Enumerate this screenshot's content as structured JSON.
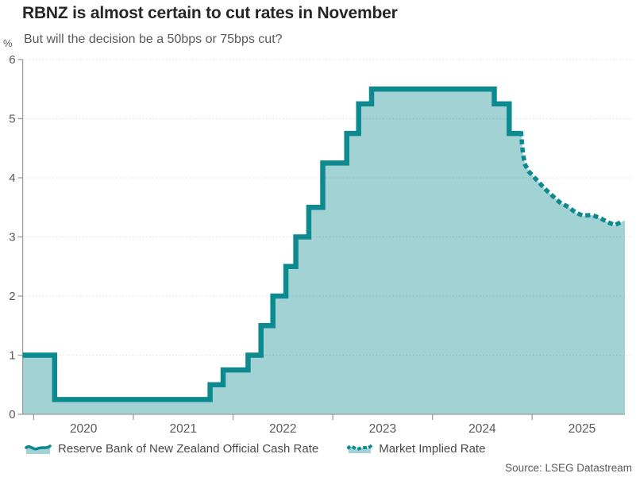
{
  "header": {
    "title": "RBNZ is almost certain to cut rates in November",
    "subtitle": "But will the decision be a 50bps or 75bps cut?"
  },
  "axes": {
    "y_unit": "%",
    "y_ticks": [
      0,
      1,
      2,
      3,
      4,
      5,
      6
    ],
    "x_ticks": [
      2020,
      2021,
      2022,
      2023,
      2024,
      2025
    ],
    "x_tick_labels": [
      "2020",
      "2021",
      "2022",
      "2023",
      "2024",
      "2025"
    ]
  },
  "legend": {
    "items": [
      {
        "label": "Reserve Bank of New Zealand Official Cash Rate",
        "icon": "area-line-icon",
        "style": "solid"
      },
      {
        "label": "Market Implied Rate",
        "icon": "dotted-line-icon",
        "style": "dotted"
      }
    ]
  },
  "footer": {
    "source": "Source: LSEG Datastream"
  },
  "colors": {
    "line": "#0d8a8f",
    "fill": "rgba(13,138,143,0.38)",
    "grid": "#d8d8d8",
    "axis": "#9c9c9c",
    "tick_text": "#595959",
    "title_text": "#262626",
    "legend_text": "#4a4a4a"
  },
  "chart_data": {
    "type": "area",
    "title": "RBNZ is almost certain to cut rates in November",
    "subtitle": "But will the decision be a 50bps or 75bps cut?",
    "ylabel": "%",
    "ylim": [
      0,
      6
    ],
    "xlim": [
      2019.89,
      2025.93
    ],
    "grid": "horizontal-dotted",
    "legend_position": "bottom",
    "series": [
      {
        "name": "Reserve Bank of New Zealand Official Cash Rate",
        "style": "step-solid",
        "end_x": 2024.89,
        "points": [
          [
            2019.89,
            1.0
          ],
          [
            2020.21,
            0.25
          ],
          [
            2021.77,
            0.5
          ],
          [
            2021.9,
            0.75
          ],
          [
            2022.15,
            1.0
          ],
          [
            2022.28,
            1.5
          ],
          [
            2022.4,
            2.0
          ],
          [
            2022.53,
            2.5
          ],
          [
            2022.63,
            3.0
          ],
          [
            2022.76,
            3.5
          ],
          [
            2022.9,
            4.25
          ],
          [
            2023.14,
            4.75
          ],
          [
            2023.26,
            5.25
          ],
          [
            2023.39,
            5.5
          ],
          [
            2024.62,
            5.25
          ],
          [
            2024.77,
            4.75
          ]
        ]
      },
      {
        "name": "Market Implied Rate",
        "style": "dotted",
        "points": [
          [
            2024.89,
            4.75
          ],
          [
            2024.9,
            4.55
          ],
          [
            2024.91,
            4.38
          ],
          [
            2024.93,
            4.22
          ],
          [
            2024.97,
            4.1
          ],
          [
            2025.02,
            4.01
          ],
          [
            2025.07,
            3.92
          ],
          [
            2025.13,
            3.81
          ],
          [
            2025.2,
            3.7
          ],
          [
            2025.28,
            3.58
          ],
          [
            2025.36,
            3.51
          ],
          [
            2025.44,
            3.41
          ],
          [
            2025.51,
            3.36
          ],
          [
            2025.6,
            3.37
          ],
          [
            2025.68,
            3.32
          ],
          [
            2025.77,
            3.24
          ],
          [
            2025.83,
            3.2
          ],
          [
            2025.93,
            3.28
          ]
        ]
      }
    ]
  }
}
